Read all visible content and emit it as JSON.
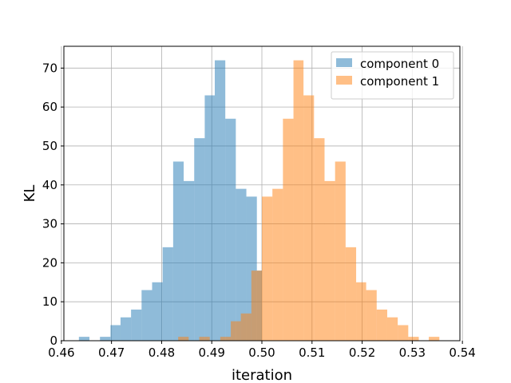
{
  "chart_data": {
    "type": "histogram",
    "title": "",
    "xlabel": "iteration",
    "ylabel": "KL",
    "xlim": [
      0.4605,
      0.5395
    ],
    "ylim": [
      0,
      75.6
    ],
    "xticks": [
      0.46,
      0.47,
      0.48,
      0.49,
      0.5,
      0.51,
      0.52,
      0.53,
      0.54
    ],
    "xtick_labels": [
      "0.46",
      "0.47",
      "0.48",
      "0.49",
      "0.50",
      "0.51",
      "0.52",
      "0.53",
      "0.54"
    ],
    "yticks": [
      0,
      10,
      20,
      30,
      40,
      50,
      60,
      70
    ],
    "ytick_labels": [
      "0",
      "10",
      "20",
      "30",
      "40",
      "50",
      "60",
      "70"
    ],
    "grid": true,
    "legend": "top-right",
    "series": [
      {
        "name": "component 0",
        "color": "#1f77b4",
        "alpha": 0.5,
        "bins": [
          [
            0.4635,
            0.4656,
            1
          ],
          [
            0.4656,
            0.4677,
            0
          ],
          [
            0.4677,
            0.4698,
            1
          ],
          [
            0.4698,
            0.4718,
            4
          ],
          [
            0.4718,
            0.4739,
            6
          ],
          [
            0.4739,
            0.476,
            8
          ],
          [
            0.476,
            0.4781,
            13
          ],
          [
            0.4781,
            0.4802,
            15
          ],
          [
            0.4802,
            0.4823,
            24
          ],
          [
            0.4823,
            0.4844,
            46
          ],
          [
            0.4844,
            0.4865,
            41
          ],
          [
            0.4865,
            0.4886,
            52
          ],
          [
            0.4886,
            0.4906,
            63
          ],
          [
            0.4906,
            0.4927,
            72
          ],
          [
            0.4927,
            0.4948,
            57
          ],
          [
            0.4948,
            0.4969,
            39
          ],
          [
            0.4969,
            0.499,
            37
          ],
          [
            0.499,
            0.5,
            18
          ]
        ]
      },
      {
        "name": "component 1",
        "color": "#ff7f0e",
        "alpha": 0.5,
        "bins": [
          [
            0.4833,
            0.4854,
            1
          ],
          [
            0.4854,
            0.4875,
            0
          ],
          [
            0.4875,
            0.4896,
            1
          ],
          [
            0.4896,
            0.4917,
            0
          ],
          [
            0.4917,
            0.4938,
            1
          ],
          [
            0.4938,
            0.4958,
            5
          ],
          [
            0.4958,
            0.4979,
            7
          ],
          [
            0.4979,
            0.5,
            18
          ],
          [
            0.5,
            0.5021,
            37
          ],
          [
            0.5021,
            0.5042,
            39
          ],
          [
            0.5042,
            0.5063,
            57
          ],
          [
            0.5063,
            0.5083,
            72
          ],
          [
            0.5083,
            0.5104,
            63
          ],
          [
            0.5104,
            0.5125,
            52
          ],
          [
            0.5125,
            0.5146,
            41
          ],
          [
            0.5146,
            0.5167,
            46
          ],
          [
            0.5167,
            0.5188,
            24
          ],
          [
            0.5188,
            0.5208,
            15
          ],
          [
            0.5208,
            0.5229,
            13
          ],
          [
            0.5229,
            0.525,
            8
          ],
          [
            0.525,
            0.5271,
            6
          ],
          [
            0.5271,
            0.5292,
            4
          ],
          [
            0.5292,
            0.5313,
            1
          ],
          [
            0.5313,
            0.5333,
            0
          ],
          [
            0.5333,
            0.5354,
            1
          ]
        ]
      }
    ]
  }
}
